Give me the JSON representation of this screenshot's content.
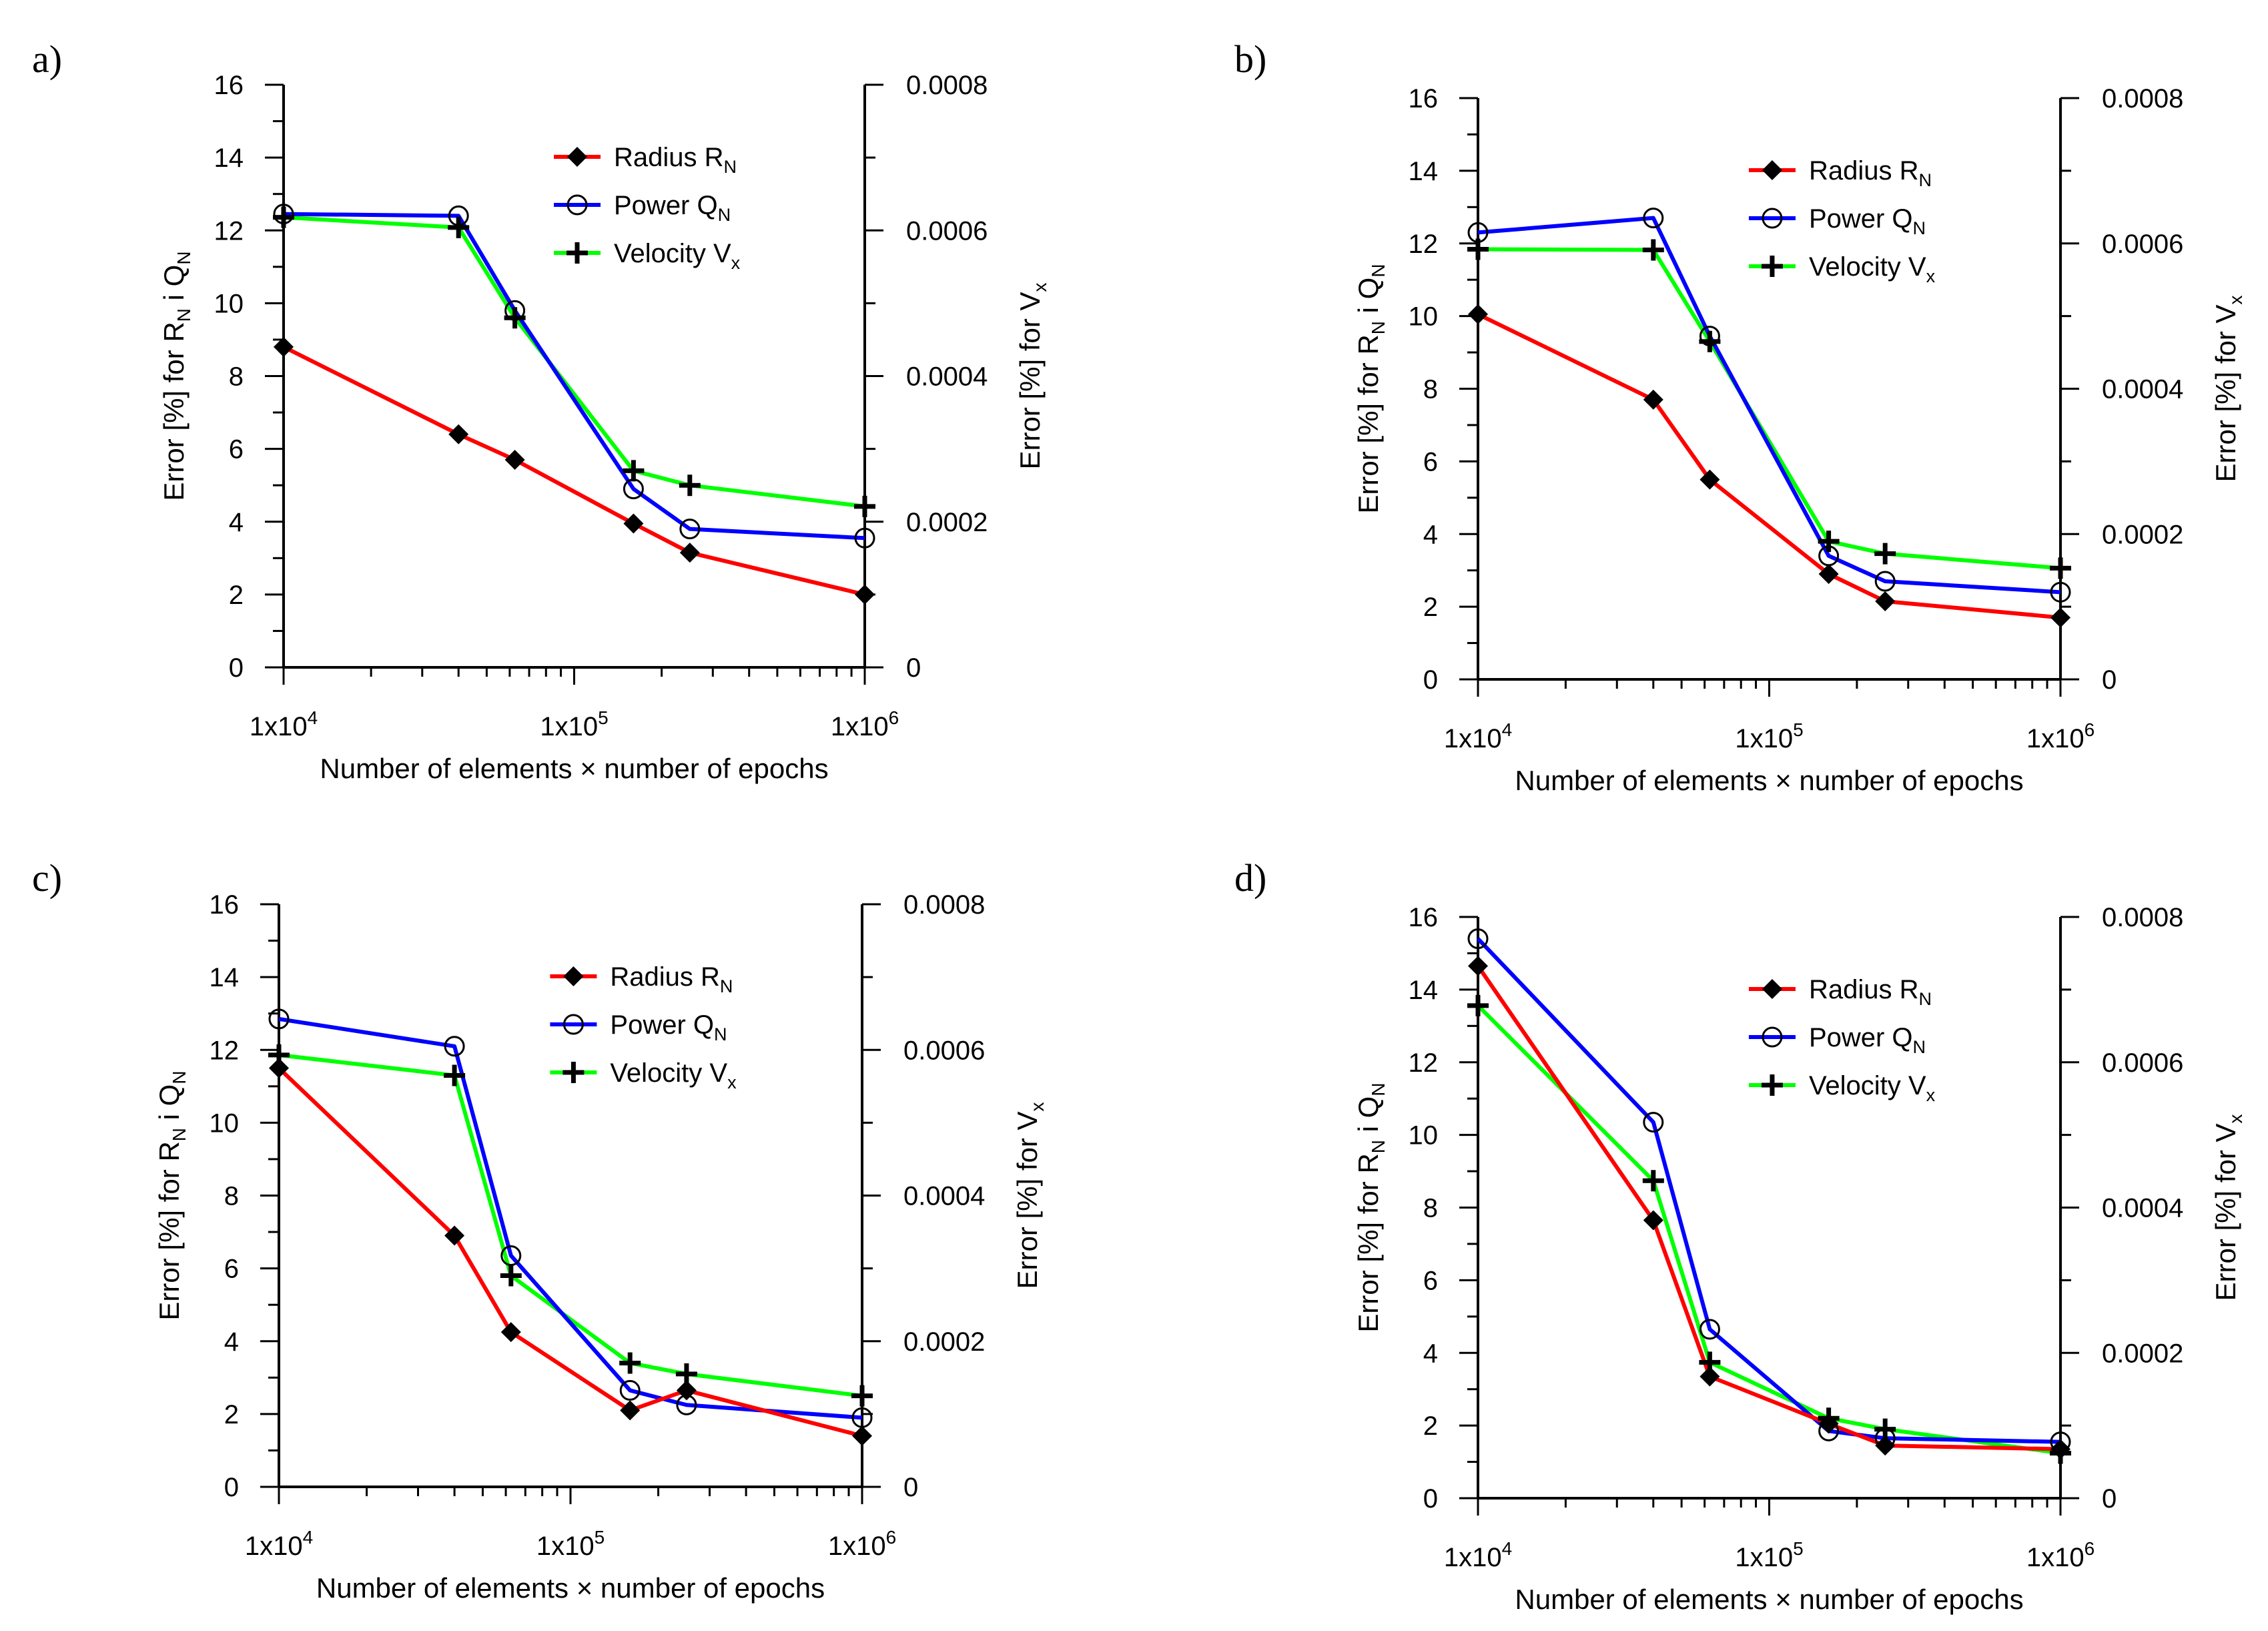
{
  "figure": {
    "colors": {
      "radius": "#ff0000",
      "power": "#0000ff",
      "velocity": "#00ff00",
      "axis": "#000000"
    }
  },
  "chart_data": [
    {
      "panel_label": "a)",
      "type": "line",
      "x_scale": "log",
      "xlim": [
        10000,
        1000000
      ],
      "x_ticks": [
        10000,
        100000,
        1000000
      ],
      "x_tick_labels": [
        {
          "mantissa": "1x10",
          "exp": "4"
        },
        {
          "mantissa": "1x10",
          "exp": "5"
        },
        {
          "mantissa": "1x10",
          "exp": "6"
        }
      ],
      "xlabel": "Number of elements × number of epochs",
      "ylabel_left": {
        "pre": "Error [%] for R",
        "sub1": "N",
        "mid": " i Q",
        "sub2": "N"
      },
      "ylabel_right": {
        "pre": "Error [%] for V",
        "sub": "x"
      },
      "ylim_left": [
        0,
        16
      ],
      "y_ticks_left": [
        "0",
        "2",
        "4",
        "6",
        "8",
        "10",
        "12",
        "14",
        "16"
      ],
      "ylim_right": [
        0,
        0.0008
      ],
      "y_ticks_right": [
        "0",
        "0.0002",
        "0.0004",
        "0.0006",
        "0.0008"
      ],
      "x": [
        10000,
        40000,
        62500,
        160000,
        250000,
        1000000
      ],
      "series": [
        {
          "name": "Radius",
          "sub": "N",
          "marker": "diamond",
          "axis": "left",
          "values": [
            8.8,
            6.4,
            5.7,
            3.95,
            3.15,
            2.0
          ]
        },
        {
          "name": "Power",
          "sub": "N",
          "marker": "circle",
          "axis": "left",
          "values": [
            12.45,
            12.4,
            9.8,
            4.9,
            3.8,
            3.55
          ]
        },
        {
          "name": "Velocity",
          "sub": "x",
          "marker": "plus",
          "axis": "right",
          "values": [
            0.000618,
            0.000604,
            0.00048,
            0.00027,
            0.00025,
            0.000221
          ]
        }
      ],
      "legend": "top-right"
    },
    {
      "panel_label": "b)",
      "type": "line",
      "x_scale": "log",
      "xlim": [
        10000,
        1000000
      ],
      "x_ticks": [
        10000,
        100000,
        1000000
      ],
      "x_tick_labels": [
        {
          "mantissa": "1x10",
          "exp": "4"
        },
        {
          "mantissa": "1x10",
          "exp": "5"
        },
        {
          "mantissa": "1x10",
          "exp": "6"
        }
      ],
      "xlabel": "Number of elements × number of epochs",
      "ylabel_left": {
        "pre": "Error [%] for R",
        "sub1": "N",
        "mid": " i Q",
        "sub2": "N"
      },
      "ylabel_right": {
        "pre": "Error [%] for V",
        "sub": "x"
      },
      "ylim_left": [
        0,
        16
      ],
      "y_ticks_left": [
        "0",
        "2",
        "4",
        "6",
        "8",
        "10",
        "12",
        "14",
        "16"
      ],
      "ylim_right": [
        0,
        0.0008
      ],
      "y_ticks_right": [
        "0",
        "0.0002",
        "0.0004",
        "0.0006",
        "0.0008"
      ],
      "x": [
        10000,
        40000,
        62500,
        160000,
        250000,
        1000000
      ],
      "series": [
        {
          "name": "Radius",
          "sub": "N",
          "marker": "diamond",
          "axis": "left",
          "values": [
            10.05,
            7.7,
            5.5,
            2.9,
            2.15,
            1.7
          ]
        },
        {
          "name": "Power",
          "sub": "N",
          "marker": "circle",
          "axis": "left",
          "values": [
            12.3,
            12.7,
            9.45,
            3.4,
            2.7,
            2.4
          ]
        },
        {
          "name": "Velocity",
          "sub": "x",
          "marker": "plus",
          "axis": "right",
          "values": [
            0.000592,
            0.000591,
            0.000465,
            0.00019,
            0.000173,
            0.000153
          ]
        }
      ],
      "legend": "top-right"
    },
    {
      "panel_label": "c)",
      "type": "line",
      "x_scale": "log",
      "xlim": [
        10000,
        1000000
      ],
      "x_ticks": [
        10000,
        100000,
        1000000
      ],
      "x_tick_labels": [
        {
          "mantissa": "1x10",
          "exp": "4"
        },
        {
          "mantissa": "1x10",
          "exp": "5"
        },
        {
          "mantissa": "1x10",
          "exp": "6"
        }
      ],
      "xlabel": "Number of elements × number of epochs",
      "ylabel_left": {
        "pre": "Error [%] for R",
        "sub1": "N",
        "mid": " i Q",
        "sub2": "N"
      },
      "ylabel_right": {
        "pre": "Error [%] for V",
        "sub": "x"
      },
      "ylim_left": [
        0,
        16
      ],
      "y_ticks_left": [
        "0",
        "2",
        "4",
        "6",
        "8",
        "10",
        "12",
        "14",
        "16"
      ],
      "ylim_right": [
        0,
        0.0008
      ],
      "y_ticks_right": [
        "0",
        "0.0002",
        "0.0004",
        "0.0006",
        "0.0008"
      ],
      "x": [
        10000,
        40000,
        62500,
        160000,
        250000,
        1000000
      ],
      "series": [
        {
          "name": "Radius",
          "sub": "N",
          "marker": "diamond",
          "axis": "left",
          "values": [
            11.5,
            6.9,
            4.25,
            2.1,
            2.65,
            1.4
          ]
        },
        {
          "name": "Power",
          "sub": "N",
          "marker": "circle",
          "axis": "left",
          "values": [
            12.85,
            12.1,
            6.35,
            2.65,
            2.25,
            1.9
          ]
        },
        {
          "name": "Velocity",
          "sub": "x",
          "marker": "plus",
          "axis": "right",
          "values": [
            0.000593,
            0.000565,
            0.00029,
            0.00017,
            0.000155,
            0.000125
          ]
        }
      ],
      "legend": "top-right"
    },
    {
      "panel_label": "d)",
      "type": "line",
      "x_scale": "log",
      "xlim": [
        10000,
        1000000
      ],
      "x_ticks": [
        10000,
        100000,
        1000000
      ],
      "x_tick_labels": [
        {
          "mantissa": "1x10",
          "exp": "4"
        },
        {
          "mantissa": "1x10",
          "exp": "5"
        },
        {
          "mantissa": "1x10",
          "exp": "6"
        }
      ],
      "xlabel": "Number of elements × number of epochs",
      "ylabel_left": {
        "pre": "Error [%] for R",
        "sub1": "N",
        "mid": " i Q",
        "sub2": "N"
      },
      "ylabel_right": {
        "pre": "Error [%] for V",
        "sub": "x"
      },
      "ylim_left": [
        0,
        16
      ],
      "y_ticks_left": [
        "0",
        "2",
        "4",
        "6",
        "8",
        "10",
        "12",
        "14",
        "16"
      ],
      "ylim_right": [
        0,
        0.0008
      ],
      "y_ticks_right": [
        "0",
        "0.0002",
        "0.0004",
        "0.0006",
        "0.0008"
      ],
      "x": [
        10000,
        40000,
        62500,
        160000,
        250000,
        1000000
      ],
      "series": [
        {
          "name": "Radius",
          "sub": "N",
          "marker": "diamond",
          "axis": "left",
          "values": [
            14.65,
            7.65,
            3.35,
            2.05,
            1.45,
            1.35
          ]
        },
        {
          "name": "Power",
          "sub": "N",
          "marker": "circle",
          "axis": "left",
          "values": [
            15.4,
            10.35,
            4.65,
            1.85,
            1.65,
            1.55
          ]
        },
        {
          "name": "Velocity",
          "sub": "x",
          "marker": "plus",
          "axis": "right",
          "values": [
            0.000678,
            0.000437,
            0.000187,
            0.00011,
            9.5e-05,
            6.2e-05
          ]
        }
      ],
      "legend": "top-right"
    }
  ]
}
